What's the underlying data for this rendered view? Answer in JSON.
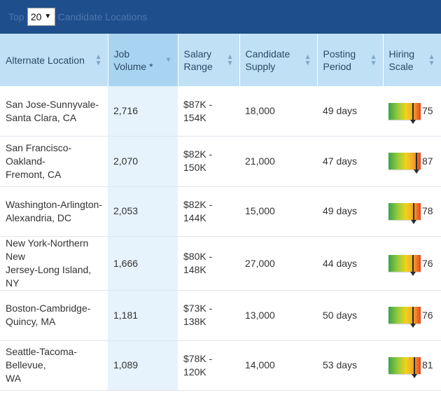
{
  "header": {
    "prefix": "Top",
    "count_selected": "20",
    "suffix": "Candidate Locations"
  },
  "columns": [
    {
      "label_lines": [
        "Alternate Location"
      ]
    },
    {
      "label_lines": [
        "Job",
        "Volume *"
      ]
    },
    {
      "label_lines": [
        "Salary",
        "Range"
      ]
    },
    {
      "label_lines": [
        "Candidate",
        "Supply"
      ]
    },
    {
      "label_lines": [
        "Posting",
        "Period"
      ]
    },
    {
      "label_lines": [
        "Hiring",
        "Scale"
      ]
    }
  ],
  "rows": [
    {
      "location_lines": [
        "San Jose-Sunnyvale-",
        "Santa Clara, CA"
      ],
      "job_volume": "2,716",
      "salary_range": "$87K - 154K",
      "candidate_supply": "18,000",
      "posting_period": "49 days",
      "hiring_scale": 75,
      "hiring_scale_label": "75"
    },
    {
      "location_lines": [
        "San Francisco-Oakland-",
        "Fremont, CA"
      ],
      "job_volume": "2,070",
      "salary_range": "$82K - 150K",
      "candidate_supply": "21,000",
      "posting_period": "47 days",
      "hiring_scale": 87,
      "hiring_scale_label": "87"
    },
    {
      "location_lines": [
        "Washington-Arlington-",
        "Alexandria, DC"
      ],
      "job_volume": "2,053",
      "salary_range": "$82K - 144K",
      "candidate_supply": "15,000",
      "posting_period": "49 days",
      "hiring_scale": 78,
      "hiring_scale_label": "78"
    },
    {
      "location_lines": [
        "New York-Northern New",
        "Jersey-Long Island, NY"
      ],
      "job_volume": "1,666",
      "salary_range": "$80K - 148K",
      "candidate_supply": "27,000",
      "posting_period": "44 days",
      "hiring_scale": 76,
      "hiring_scale_label": "76"
    },
    {
      "location_lines": [
        "Boston-Cambridge-",
        "Quincy, MA"
      ],
      "job_volume": "1,181",
      "salary_range": "$73K - 138K",
      "candidate_supply": "13,000",
      "posting_period": "50 days",
      "hiring_scale": 76,
      "hiring_scale_label": "76"
    },
    {
      "location_lines": [
        "Seattle-Tacoma-Bellevue,",
        "WA"
      ],
      "job_volume": "1,089",
      "salary_range": "$78K - 120K",
      "candidate_supply": "14,000",
      "posting_period": "53 days",
      "hiring_scale": 81,
      "hiring_scale_label": "81"
    }
  ],
  "colors": {
    "header_bar": "#1f4e8c",
    "column_header": "#bfe0f5",
    "volume_column": "#e6f3fc"
  }
}
